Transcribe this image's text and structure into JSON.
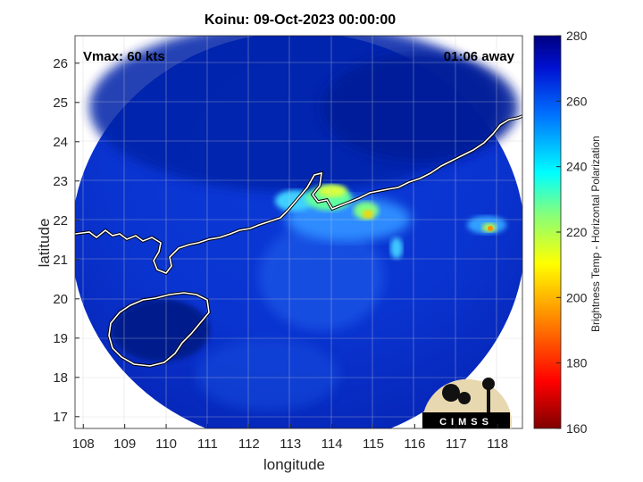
{
  "title": "Koinu: 09-Oct-2023 00:00:00",
  "vmax_label": "Vmax: 60 kts",
  "time_label": "01:06 away",
  "xlabel": "longitude",
  "ylabel": "latitude",
  "colorbar_label": "Brightness Temp - Horizontal Polarization",
  "logo_text": "CIMSS",
  "chart_data": {
    "type": "heatmap",
    "title": "Koinu: 09-Oct-2023 00:00:00",
    "xlabel": "longitude",
    "ylabel": "latitude",
    "x_ticks": [
      "108",
      "109",
      "110",
      "111",
      "112",
      "113",
      "114",
      "115",
      "116",
      "117",
      "118"
    ],
    "y_ticks": [
      "17",
      "18",
      "19",
      "20",
      "21",
      "22",
      "23",
      "24",
      "25",
      "26"
    ],
    "xlim": [
      107.8,
      118.6
    ],
    "ylim": [
      16.7,
      26.7
    ],
    "colorbar": {
      "min": 160,
      "max": 280,
      "ticks": [
        "160",
        "180",
        "200",
        "220",
        "240",
        "260",
        "280"
      ]
    },
    "grid": true,
    "colors": {
      "background_swath": "#0a2ec8",
      "deep": "#031a8c",
      "land_outline": "#ffffff"
    }
  }
}
